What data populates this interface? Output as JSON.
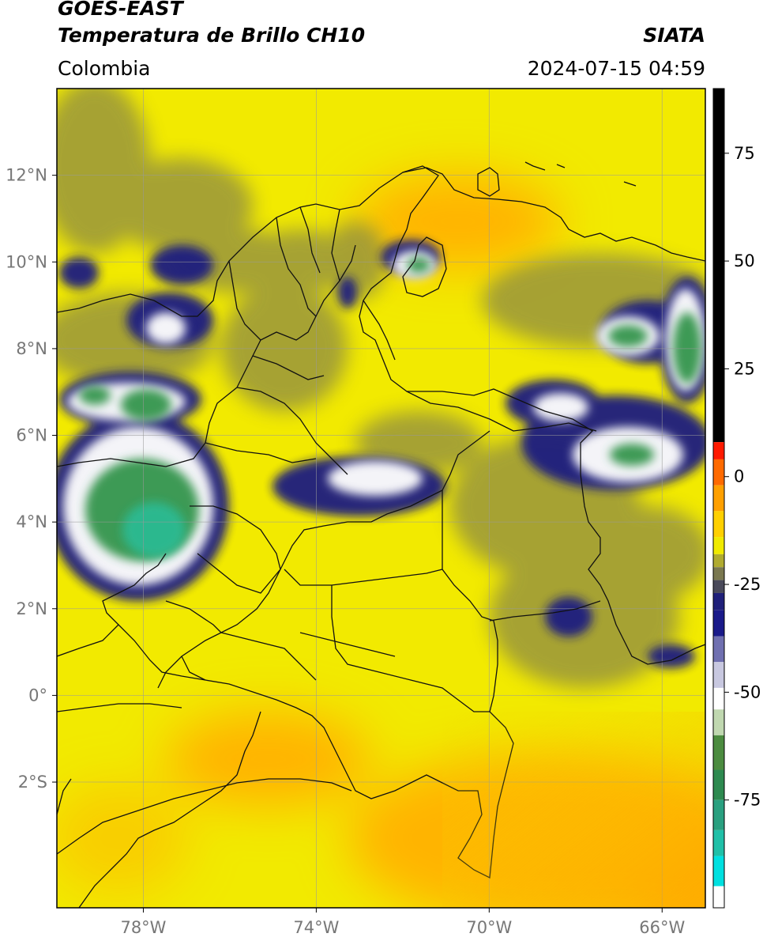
{
  "header": {
    "line1": "GOES-EAST",
    "line2": "Temperatura de Brillo CH10",
    "region": "Colombia",
    "agency": "SIATA",
    "datetime": "2024-07-15 04:59"
  },
  "map": {
    "lon_range": [
      -80,
      -65
    ],
    "lat_range": [
      -4.9,
      14
    ],
    "lat_ticks": [
      {
        "v": 12,
        "label": "12°N"
      },
      {
        "v": 10,
        "label": "10°N"
      },
      {
        "v": 8,
        "label": "8°N"
      },
      {
        "v": 6,
        "label": "6°N"
      },
      {
        "v": 4,
        "label": "4°N"
      },
      {
        "v": 2,
        "label": "2°N"
      },
      {
        "v": 0,
        "label": "0°"
      },
      {
        "v": -2,
        "label": "2°S"
      }
    ],
    "lon_ticks": [
      {
        "v": -78,
        "label": "78°W"
      },
      {
        "v": -74,
        "label": "74°W"
      },
      {
        "v": -70,
        "label": "70°W"
      },
      {
        "v": -66,
        "label": "66°W"
      }
    ],
    "colors": {
      "background": "#f2ea00",
      "warm": "#ffb400",
      "gray": "#8c8a45",
      "navy": "#1a1a80",
      "white": "#f4f4f8",
      "green": "#3d9a55",
      "teal": "#2cbc95",
      "border": "#111111",
      "grid": "#9a9a9a"
    }
  },
  "colorbar": {
    "range": [
      -100,
      90
    ],
    "ticks": [
      {
        "v": 75,
        "label": "75"
      },
      {
        "v": 50,
        "label": "50"
      },
      {
        "v": 25,
        "label": "25"
      },
      {
        "v": 0,
        "label": "0"
      },
      {
        "v": -25,
        "label": "-25"
      },
      {
        "v": -50,
        "label": "-50"
      },
      {
        "v": -75,
        "label": "-75"
      }
    ]
  }
}
